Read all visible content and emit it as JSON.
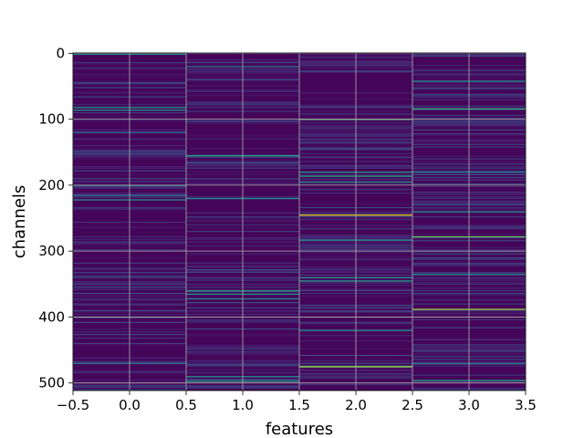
{
  "chart_data": {
    "type": "heatmap",
    "title": "",
    "xlabel": "features",
    "ylabel": "channels",
    "columns": [
      0,
      1,
      2,
      3
    ],
    "rows": 512,
    "xlim": [
      -0.5,
      3.5
    ],
    "ylim": [
      511.5,
      -0.5
    ],
    "y_inverted": true,
    "x_ticks": [
      -0.5,
      0.0,
      0.5,
      1.0,
      1.5,
      2.0,
      2.5,
      3.0,
      3.5
    ],
    "x_tick_labels": [
      "−0.5",
      "0.0",
      "0.5",
      "1.0",
      "1.5",
      "2.0",
      "2.5",
      "3.0",
      "3.5"
    ],
    "y_ticks": [
      0,
      100,
      200,
      300,
      400,
      500
    ],
    "y_tick_labels": [
      "0",
      "100",
      "200",
      "300",
      "400",
      "500"
    ],
    "grid": true,
    "colormap": "viridis",
    "value_range": [
      0,
      1
    ],
    "background_value": 0.0,
    "highlights": [
      {
        "column": 0,
        "rows": [
          1,
          82,
          86,
          120,
          200,
          215,
          222,
          400,
          470
        ]
      },
      {
        "column": 1,
        "rows": [
          20,
          155,
          220,
          360,
          365,
          372,
          490,
          497
        ]
      },
      {
        "column": 2,
        "rows": [
          100,
          180,
          186,
          195,
          245,
          283,
          340,
          345,
          420,
          475
        ]
      },
      {
        "column": 3,
        "rows": [
          42,
          84,
          180,
          240,
          278,
          335,
          388,
          470,
          496
        ]
      }
    ],
    "highlight_values": [
      [
        0.5,
        0.55,
        0.45,
        0.35,
        0.5,
        0.4,
        0.45,
        0.35,
        0.4
      ],
      [
        0.4,
        0.55,
        0.45,
        0.6,
        0.5,
        0.45,
        0.5,
        0.55
      ],
      [
        0.7,
        0.55,
        0.6,
        0.5,
        0.95,
        0.55,
        0.5,
        0.55,
        0.5,
        0.85
      ],
      [
        0.5,
        0.65,
        0.45,
        0.5,
        0.75,
        0.5,
        0.85,
        0.45,
        0.6
      ]
    ]
  }
}
